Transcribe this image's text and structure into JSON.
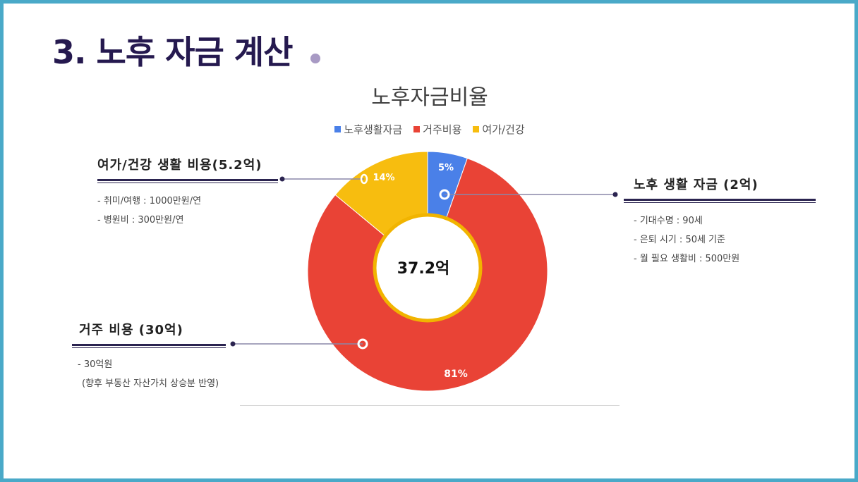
{
  "page": {
    "title": "3. 노후 자금 계산"
  },
  "chart_data": {
    "type": "pie",
    "title": "노후자금비율",
    "center_label": "37.2억",
    "slices": [
      {
        "name": "노후생활자금",
        "value": 2,
        "percent_label": "5%",
        "color": "#4a80e8"
      },
      {
        "name": "거주비용",
        "value": 30,
        "percent_label": "81%",
        "color": "#e94336"
      },
      {
        "name": "여가/건강",
        "value": 5.2,
        "percent_label": "14%",
        "color": "#f7bd0f"
      }
    ],
    "legend_position": "top"
  },
  "annotations": {
    "leisure": {
      "title": "여가/건강 생활 비용(5.2억)",
      "items": [
        "- 취미/여행 : 1000만원/연",
        "- 병원비 : 300만원/연"
      ]
    },
    "living": {
      "title": "노후 생활 자금 (2억)",
      "items": [
        "- 기대수명 : 90세",
        "- 은퇴 시기 : 50세 기준",
        "- 월 필요 생활비 : 500만원"
      ]
    },
    "housing": {
      "title": "거주 비용 (30억)",
      "items": [
        "- 30억원",
        "(향후 부동산 자산가치 상승분 반영)"
      ]
    }
  },
  "colors": {
    "frame": "#4aa9c8",
    "title": "#25194f",
    "accent_rule": "#2b2450"
  }
}
